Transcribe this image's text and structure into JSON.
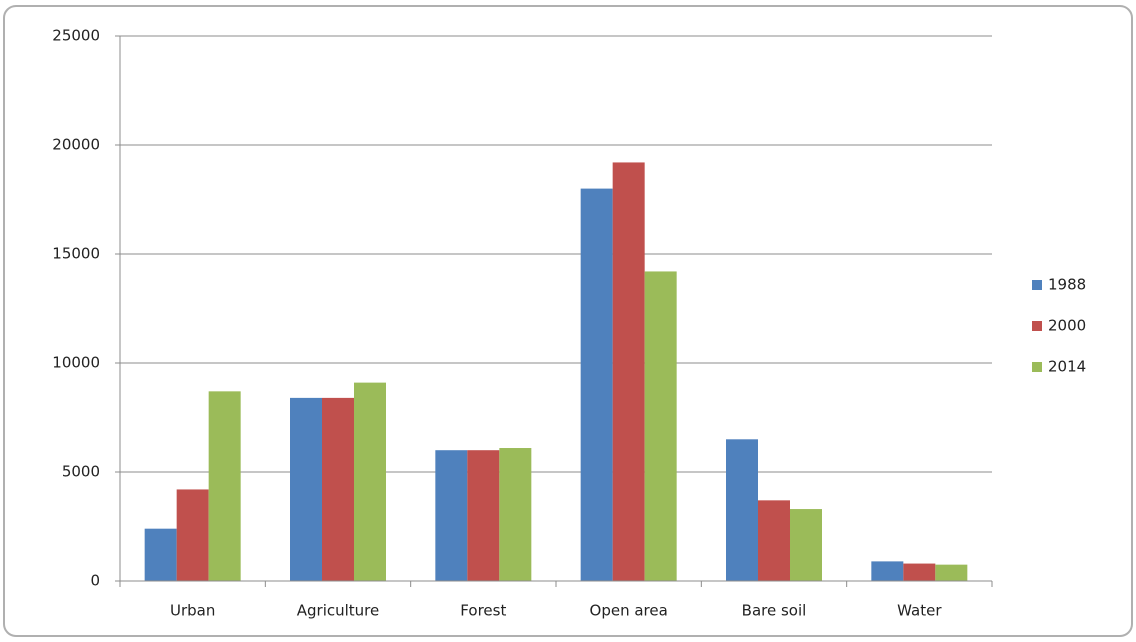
{
  "chart_data": {
    "type": "bar",
    "categories": [
      "Urban",
      "Agriculture",
      "Forest",
      "Open area",
      "Bare soil",
      "Water"
    ],
    "series": [
      {
        "name": "1988",
        "color": "#4f81bd",
        "values": [
          2400,
          8400,
          6000,
          18000,
          6500,
          900
        ]
      },
      {
        "name": "2000",
        "color": "#c0504d",
        "values": [
          4200,
          8400,
          6000,
          19200,
          3700,
          800
        ]
      },
      {
        "name": "2014",
        "color": "#9bbb59",
        "values": [
          8700,
          9100,
          6100,
          14200,
          3300,
          750
        ]
      }
    ],
    "ylim": [
      0,
      25000
    ],
    "yticks": [
      0,
      5000,
      10000,
      15000,
      20000,
      25000
    ],
    "grid": true,
    "legend": "right"
  }
}
